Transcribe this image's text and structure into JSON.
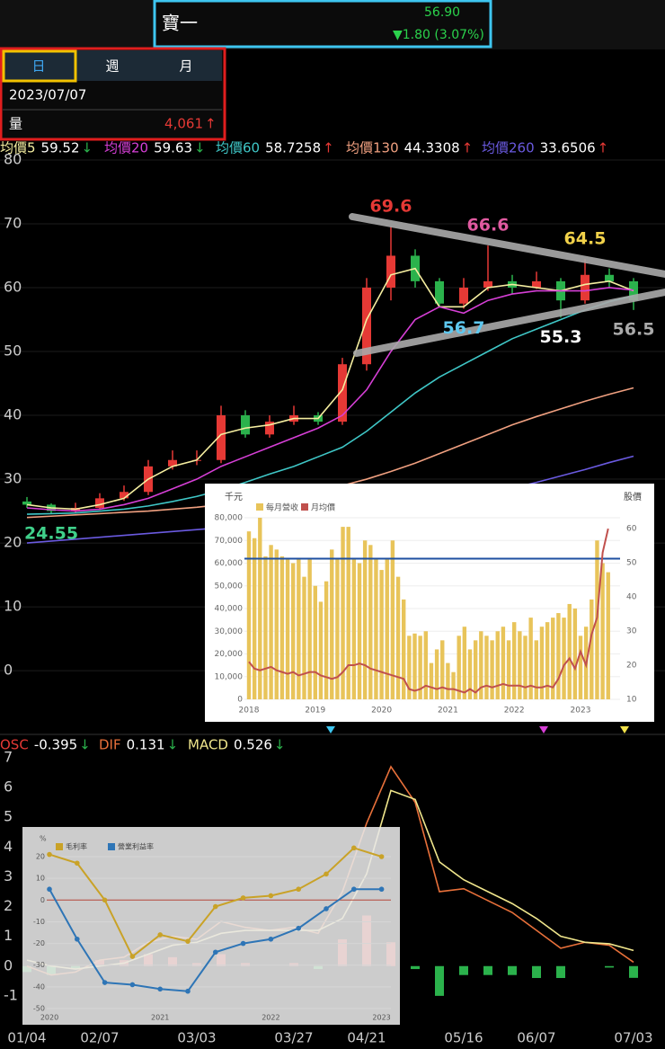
{
  "header": {
    "name": "寶一",
    "price": "56.90",
    "change": "▼1.80 (3.07%)"
  },
  "tabs": [
    "日",
    "週",
    "月"
  ],
  "selected_tab": 0,
  "info": {
    "date": "2023/07/07",
    "volume_label": "量",
    "volume": "4,061",
    "volume_arrow": "↑"
  },
  "chart_data": [
    {
      "type": "candlestick",
      "open": [
        26.5,
        26,
        25,
        25.5,
        27,
        28,
        32,
        33,
        33,
        40,
        37,
        39,
        40,
        39,
        48,
        60,
        65,
        61,
        57.5,
        60,
        61,
        60,
        61,
        58,
        62,
        61
      ],
      "high": [
        27.2,
        26.2,
        26.3,
        27.8,
        29,
        33,
        34.5,
        34.5,
        41.5,
        40.8,
        40,
        41.5,
        40.5,
        49,
        61.5,
        69.6,
        66,
        61.5,
        61.5,
        66.6,
        62,
        62.5,
        61.5,
        64.5,
        63,
        61.5
      ],
      "low": [
        25.5,
        24.55,
        24.8,
        25.2,
        26.6,
        27.5,
        31.5,
        32.2,
        32.5,
        36.5,
        36.5,
        38.5,
        38.5,
        38.5,
        47,
        58,
        60,
        57,
        56.7,
        59.5,
        59,
        59.8,
        55.3,
        57.5,
        60,
        56.5
      ],
      "close": [
        26,
        25,
        25.5,
        27,
        28,
        32,
        33,
        33,
        40,
        37,
        39,
        40,
        39,
        48,
        60,
        65,
        61,
        57.5,
        60,
        61,
        60,
        61,
        58,
        62,
        61,
        58
      ],
      "up_color": "#e53935",
      "down_color": "#2bb24c",
      "series": [
        {
          "name": "均價5",
          "color": "#f5eea0",
          "legend_value": 59.52,
          "legend_arrow": "↓",
          "values": [
            26,
            25.5,
            25.3,
            26,
            27,
            30,
            32,
            33,
            37,
            38,
            38.5,
            39.5,
            39.5,
            44,
            55,
            62,
            63,
            57,
            57,
            60,
            60.5,
            60,
            59.5,
            60.5,
            61,
            59.5
          ]
        },
        {
          "name": "均價20",
          "color": "#d63fd6",
          "legend_value": 59.63,
          "legend_arrow": "↓",
          "values": [
            25.5,
            25.2,
            25,
            25.3,
            26,
            27,
            28.5,
            30,
            32,
            33.5,
            35,
            36.5,
            38,
            40,
            44,
            50,
            55,
            57,
            56,
            58,
            59,
            59.5,
            59.5,
            59.5,
            60,
            59.6
          ]
        },
        {
          "name": "均價60",
          "color": "#3fc7c7",
          "legend_value": 58.7258,
          "legend_arrow": "↑",
          "values": [
            24.5,
            24.6,
            24.7,
            25,
            25.3,
            25.8,
            26.5,
            27.3,
            28.3,
            29.5,
            30.8,
            32,
            33.5,
            35,
            37.5,
            40.5,
            43.5,
            46,
            48,
            50,
            52,
            53.5,
            55,
            56.5,
            57.8,
            58.7
          ]
        },
        {
          "name": "均價130",
          "color": "#f0a080",
          "legend_value": 44.3308,
          "legend_arrow": "↑",
          "values": [
            24,
            24.2,
            24.4,
            24.6,
            24.8,
            25,
            25.3,
            25.6,
            26,
            26.5,
            27,
            27.5,
            28.2,
            29,
            30,
            31.2,
            32.5,
            34,
            35.5,
            37,
            38.5,
            39.8,
            41,
            42.2,
            43.3,
            44.3
          ]
        },
        {
          "name": "均價260",
          "color": "#6a5ae0",
          "legend_value": 33.6506,
          "legend_arrow": "↑",
          "values": [
            20,
            20.3,
            20.6,
            20.9,
            21.2,
            21.5,
            21.8,
            22.1,
            22.4,
            22.7,
            23,
            23.3,
            23.6,
            24,
            24.5,
            25,
            25.6,
            26.3,
            27,
            27.8,
            28.6,
            29.5,
            30.5,
            31.5,
            32.6,
            33.6
          ]
        }
      ],
      "annotations": [
        {
          "value": 69.6,
          "point": 15,
          "place": "above",
          "color": "#e53935"
        },
        {
          "value": 66.6,
          "point": 19,
          "place": "above",
          "color": "#e05aa0"
        },
        {
          "value": 64.5,
          "point": 23,
          "place": "above",
          "color": "#f2d24a"
        },
        {
          "value": 56.7,
          "point": 18,
          "place": "below",
          "color": "#5ec8f0"
        },
        {
          "value": 55.3,
          "point": 22,
          "place": "below",
          "color": "#ffffff"
        },
        {
          "value": 56.5,
          "point": 25,
          "place": "below",
          "color": "#aaaaaa"
        },
        {
          "value": 24.55,
          "point": 1,
          "place": "below",
          "color": "#3fd08a"
        }
      ],
      "ylim": [
        -9.7,
        81.4
      ],
      "yticks": [
        0,
        10,
        20,
        30,
        40,
        50,
        60,
        70,
        80
      ],
      "grid": true
    },
    {
      "type": "bar",
      "y_label": "千元",
      "y2_label": "股價",
      "categories": [
        "2018",
        null,
        null,
        null,
        null,
        null,
        null,
        null,
        null,
        null,
        null,
        null,
        "2019",
        null,
        null,
        null,
        null,
        null,
        null,
        null,
        null,
        null,
        null,
        null,
        "2020",
        null,
        null,
        null,
        null,
        null,
        null,
        null,
        null,
        null,
        null,
        null,
        "2021",
        null,
        null,
        null,
        null,
        null,
        null,
        null,
        null,
        null,
        null,
        null,
        "2022",
        null,
        null,
        null,
        null,
        null,
        null,
        null,
        null,
        null,
        null,
        null,
        "2023",
        null,
        null,
        null,
        null,
        null
      ],
      "series": [
        {
          "name": "每月營收",
          "color": "#e8c45a",
          "values": [
            74000,
            71000,
            80000,
            63000,
            68000,
            66000,
            63000,
            62000,
            60000,
            62000,
            54000,
            62000,
            50000,
            43000,
            52000,
            66000,
            62000,
            76000,
            76000,
            62000,
            60000,
            70000,
            68000,
            62000,
            57000,
            62000,
            70000,
            54000,
            44000,
            28000,
            29000,
            28000,
            30000,
            16000,
            22000,
            26000,
            16000,
            12000,
            28000,
            32000,
            22000,
            26000,
            30000,
            28000,
            26000,
            30000,
            32000,
            26000,
            34000,
            30000,
            28000,
            36000,
            26000,
            32000,
            34000,
            36000,
            38000,
            36000,
            42000,
            40000,
            28000,
            32000,
            44000,
            70000,
            60000,
            56000
          ]
        },
        {
          "name": "月均價",
          "color": "#c0504d",
          "axis": "y2",
          "values": [
            21,
            19,
            18.5,
            19,
            19.5,
            18.5,
            18,
            17.5,
            18,
            17,
            17.5,
            18,
            18,
            17,
            16.5,
            16,
            16.5,
            18,
            20,
            20,
            20.5,
            20,
            19,
            18.5,
            18,
            17.5,
            17,
            16.5,
            16,
            13,
            12.5,
            13,
            14,
            13.5,
            13,
            13.5,
            13,
            13,
            12.5,
            12,
            13,
            12,
            13.5,
            14,
            13.5,
            14,
            14.5,
            14,
            14,
            14,
            13.5,
            14,
            13.5,
            13.5,
            14,
            13.5,
            16,
            20,
            22,
            19,
            24,
            20,
            29,
            34,
            53,
            60
          ]
        }
      ],
      "reference_line": {
        "value": 62000,
        "color": "#1e4fa0"
      },
      "ylim": [
        0,
        80000
      ],
      "yticks": [
        0,
        {
          "value": 10000,
          "label": "10,000"
        },
        {
          "value": 20000,
          "label": "20,000"
        },
        {
          "value": 30000,
          "label": "30,000"
        },
        {
          "value": 40000,
          "label": "40,000"
        },
        {
          "value": 50000,
          "label": "50,000"
        },
        {
          "value": 60000,
          "label": "60,000"
        },
        {
          "value": 70000,
          "label": "70,000"
        },
        {
          "value": 80000,
          "label": "80,000"
        }
      ],
      "y2lim": [
        10,
        63.2
      ],
      "y2ticks": [
        10,
        20,
        30,
        40,
        50,
        60
      ],
      "grid": true
    },
    {
      "type": "macd",
      "categories": [
        "01/04",
        null,
        null,
        "02/07",
        null,
        null,
        null,
        "03/03",
        null,
        null,
        null,
        "03/27",
        null,
        null,
        "04/21",
        null,
        null,
        null,
        "05/16",
        null,
        null,
        "06/07",
        null,
        null,
        null,
        "07/03"
      ],
      "series": [
        {
          "name": "OSC",
          "kind": "bar",
          "color": "#e53935",
          "neg_color": "#2bb24c",
          "legend_value": -0.395,
          "legend_arrow": "↓",
          "values": [
            -0.2,
            -0.3,
            -0.1,
            0.2,
            0.2,
            0.4,
            0.3,
            0.1,
            0.4,
            0.1,
            0,
            0.1,
            -0.1,
            0.9,
            1.7,
            0.8,
            -0.1,
            -1.0,
            -0.3,
            -0.3,
            -0.3,
            -0.4,
            -0.4,
            0,
            -0.05,
            -0.395
          ]
        },
        {
          "name": "DIF",
          "kind": "line",
          "color": "#e8703a",
          "legend_value": 0.131,
          "legend_arrow": "↓",
          "values": [
            0,
            -0.3,
            -0.2,
            0.2,
            0.3,
            0.8,
            1.0,
            0.9,
            1.5,
            1.3,
            1.2,
            1.3,
            1.1,
            2.5,
            4.8,
            6.7,
            5.5,
            2.5,
            2.6,
            2.2,
            1.8,
            1.2,
            0.6,
            0.8,
            0.7,
            0.131
          ]
        },
        {
          "name": "MACD",
          "kind": "line",
          "color": "#f0e68c",
          "legend_value": 0.526,
          "legend_arrow": "↓",
          "values": [
            0.2,
            0,
            -0.1,
            0,
            0.1,
            0.4,
            0.7,
            0.8,
            1.1,
            1.2,
            1.2,
            1.2,
            1.2,
            1.6,
            3.1,
            5.9,
            5.6,
            3.5,
            2.9,
            2.5,
            2.1,
            1.6,
            1.0,
            0.8,
            0.75,
            0.526
          ]
        }
      ],
      "ylim": [
        -1.97,
        7.15
      ],
      "yticks": [
        -1,
        0,
        1,
        2,
        3,
        4,
        5,
        6,
        7
      ]
    },
    {
      "type": "line",
      "y_label": "%",
      "categories": [
        "2020",
        null,
        null,
        null,
        "2021",
        null,
        null,
        null,
        "2022",
        null,
        null,
        null,
        "2023"
      ],
      "series": [
        {
          "name": "毛利率",
          "color": "#c9a227",
          "values": [
            21,
            17,
            0,
            -26,
            -16,
            -19,
            -3,
            1,
            2,
            5,
            12,
            24,
            20
          ]
        },
        {
          "name": "營業利益率",
          "color": "#2e75b6",
          "values": [
            5,
            -18,
            -38,
            -39,
            -41,
            -42,
            -24,
            -20,
            -18,
            -13,
            -4,
            5,
            5
          ]
        }
      ],
      "ylim": [
        -53.3,
        28.7
      ],
      "yticks": [
        20,
        10,
        0,
        -10,
        -20,
        -30,
        -40,
        -50
      ],
      "grid": true
    }
  ]
}
